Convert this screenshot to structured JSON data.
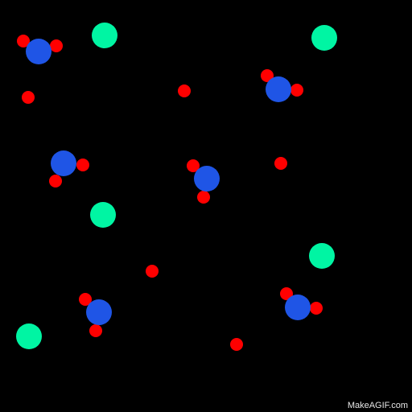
{
  "watermark": "MakeAGIF.com",
  "colors": {
    "background": "#000000",
    "blue": "#1f55e6",
    "red": "#ff0000",
    "green": "#00f5a3"
  }
}
